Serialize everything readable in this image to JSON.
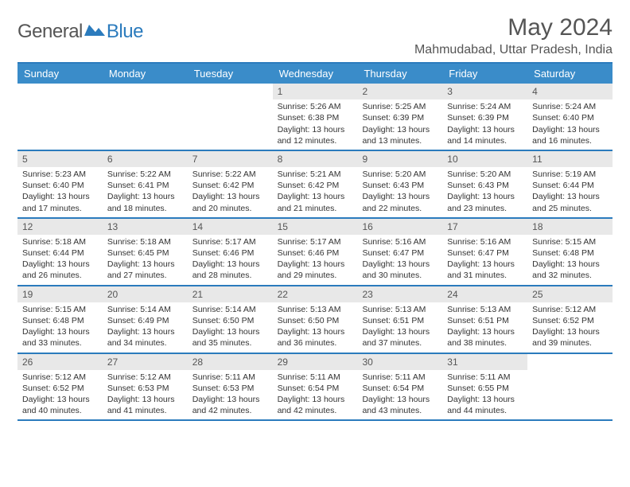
{
  "logo": {
    "text1": "General",
    "text2": "Blue"
  },
  "title": "May 2024",
  "location": "Mahmudabad, Uttar Pradesh, India",
  "colors": {
    "header_bar": "#3a8cc9",
    "border": "#2b7bbd",
    "daynum_bg": "#e8e8e8",
    "text": "#555555",
    "body_text": "#333333",
    "background": "#ffffff"
  },
  "typography": {
    "title_size": 30,
    "location_size": 16,
    "weekday_size": 13,
    "daynum_size": 12,
    "body_size": 10.5
  },
  "weekdays": [
    "Sunday",
    "Monday",
    "Tuesday",
    "Wednesday",
    "Thursday",
    "Friday",
    "Saturday"
  ],
  "weeks": [
    [
      {
        "n": "",
        "sr": "",
        "ss": "",
        "dl": ""
      },
      {
        "n": "",
        "sr": "",
        "ss": "",
        "dl": ""
      },
      {
        "n": "",
        "sr": "",
        "ss": "",
        "dl": ""
      },
      {
        "n": "1",
        "sr": "5:26 AM",
        "ss": "6:38 PM",
        "dl": "13 hours and 12 minutes."
      },
      {
        "n": "2",
        "sr": "5:25 AM",
        "ss": "6:39 PM",
        "dl": "13 hours and 13 minutes."
      },
      {
        "n": "3",
        "sr": "5:24 AM",
        "ss": "6:39 PM",
        "dl": "13 hours and 14 minutes."
      },
      {
        "n": "4",
        "sr": "5:24 AM",
        "ss": "6:40 PM",
        "dl": "13 hours and 16 minutes."
      }
    ],
    [
      {
        "n": "5",
        "sr": "5:23 AM",
        "ss": "6:40 PM",
        "dl": "13 hours and 17 minutes."
      },
      {
        "n": "6",
        "sr": "5:22 AM",
        "ss": "6:41 PM",
        "dl": "13 hours and 18 minutes."
      },
      {
        "n": "7",
        "sr": "5:22 AM",
        "ss": "6:42 PM",
        "dl": "13 hours and 20 minutes."
      },
      {
        "n": "8",
        "sr": "5:21 AM",
        "ss": "6:42 PM",
        "dl": "13 hours and 21 minutes."
      },
      {
        "n": "9",
        "sr": "5:20 AM",
        "ss": "6:43 PM",
        "dl": "13 hours and 22 minutes."
      },
      {
        "n": "10",
        "sr": "5:20 AM",
        "ss": "6:43 PM",
        "dl": "13 hours and 23 minutes."
      },
      {
        "n": "11",
        "sr": "5:19 AM",
        "ss": "6:44 PM",
        "dl": "13 hours and 25 minutes."
      }
    ],
    [
      {
        "n": "12",
        "sr": "5:18 AM",
        "ss": "6:44 PM",
        "dl": "13 hours and 26 minutes."
      },
      {
        "n": "13",
        "sr": "5:18 AM",
        "ss": "6:45 PM",
        "dl": "13 hours and 27 minutes."
      },
      {
        "n": "14",
        "sr": "5:17 AM",
        "ss": "6:46 PM",
        "dl": "13 hours and 28 minutes."
      },
      {
        "n": "15",
        "sr": "5:17 AM",
        "ss": "6:46 PM",
        "dl": "13 hours and 29 minutes."
      },
      {
        "n": "16",
        "sr": "5:16 AM",
        "ss": "6:47 PM",
        "dl": "13 hours and 30 minutes."
      },
      {
        "n": "17",
        "sr": "5:16 AM",
        "ss": "6:47 PM",
        "dl": "13 hours and 31 minutes."
      },
      {
        "n": "18",
        "sr": "5:15 AM",
        "ss": "6:48 PM",
        "dl": "13 hours and 32 minutes."
      }
    ],
    [
      {
        "n": "19",
        "sr": "5:15 AM",
        "ss": "6:48 PM",
        "dl": "13 hours and 33 minutes."
      },
      {
        "n": "20",
        "sr": "5:14 AM",
        "ss": "6:49 PM",
        "dl": "13 hours and 34 minutes."
      },
      {
        "n": "21",
        "sr": "5:14 AM",
        "ss": "6:50 PM",
        "dl": "13 hours and 35 minutes."
      },
      {
        "n": "22",
        "sr": "5:13 AM",
        "ss": "6:50 PM",
        "dl": "13 hours and 36 minutes."
      },
      {
        "n": "23",
        "sr": "5:13 AM",
        "ss": "6:51 PM",
        "dl": "13 hours and 37 minutes."
      },
      {
        "n": "24",
        "sr": "5:13 AM",
        "ss": "6:51 PM",
        "dl": "13 hours and 38 minutes."
      },
      {
        "n": "25",
        "sr": "5:12 AM",
        "ss": "6:52 PM",
        "dl": "13 hours and 39 minutes."
      }
    ],
    [
      {
        "n": "26",
        "sr": "5:12 AM",
        "ss": "6:52 PM",
        "dl": "13 hours and 40 minutes."
      },
      {
        "n": "27",
        "sr": "5:12 AM",
        "ss": "6:53 PM",
        "dl": "13 hours and 41 minutes."
      },
      {
        "n": "28",
        "sr": "5:11 AM",
        "ss": "6:53 PM",
        "dl": "13 hours and 42 minutes."
      },
      {
        "n": "29",
        "sr": "5:11 AM",
        "ss": "6:54 PM",
        "dl": "13 hours and 42 minutes."
      },
      {
        "n": "30",
        "sr": "5:11 AM",
        "ss": "6:54 PM",
        "dl": "13 hours and 43 minutes."
      },
      {
        "n": "31",
        "sr": "5:11 AM",
        "ss": "6:55 PM",
        "dl": "13 hours and 44 minutes."
      },
      {
        "n": "",
        "sr": "",
        "ss": "",
        "dl": ""
      }
    ]
  ],
  "labels": {
    "sunrise": "Sunrise:",
    "sunset": "Sunset:",
    "daylight": "Daylight:"
  }
}
